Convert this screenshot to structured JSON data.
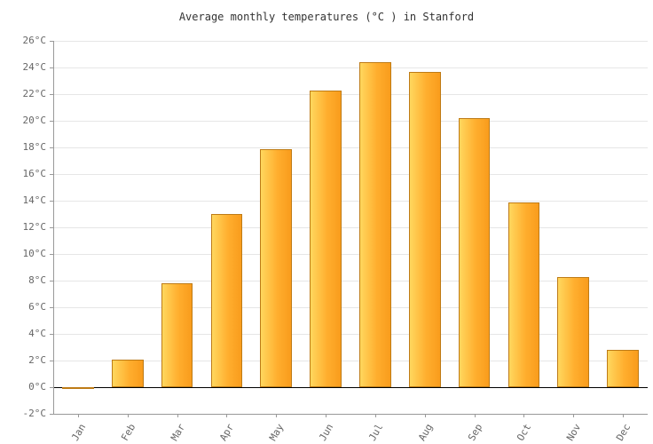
{
  "chart_data": {
    "type": "bar",
    "title": "Average monthly temperatures (°C ) in Stanford",
    "categories": [
      "Jan",
      "Feb",
      "Mar",
      "Apr",
      "May",
      "Jun",
      "Jul",
      "Aug",
      "Sep",
      "Oct",
      "Nov",
      "Dec"
    ],
    "values": [
      -0.1,
      2.1,
      7.8,
      13.0,
      17.9,
      22.3,
      24.4,
      23.7,
      20.2,
      13.9,
      8.3,
      2.8
    ],
    "xlabel": "",
    "ylabel": "",
    "ylim": [
      -2,
      26
    ],
    "ytick_step": 2,
    "ytick_suffix": "°C",
    "grid": true,
    "legend": false
  },
  "colors": {
    "bar_fill_light": "#FFD75E",
    "bar_fill_mid": "#FFAE2E",
    "bar_fill_dark": "#F99C1C",
    "bar_border": "#BE7B16",
    "grid": "#e6e6e6",
    "axis": "#999999",
    "zero_line": "#000000",
    "tick_label": "#666666",
    "title": "#333333",
    "background": "#ffffff"
  }
}
